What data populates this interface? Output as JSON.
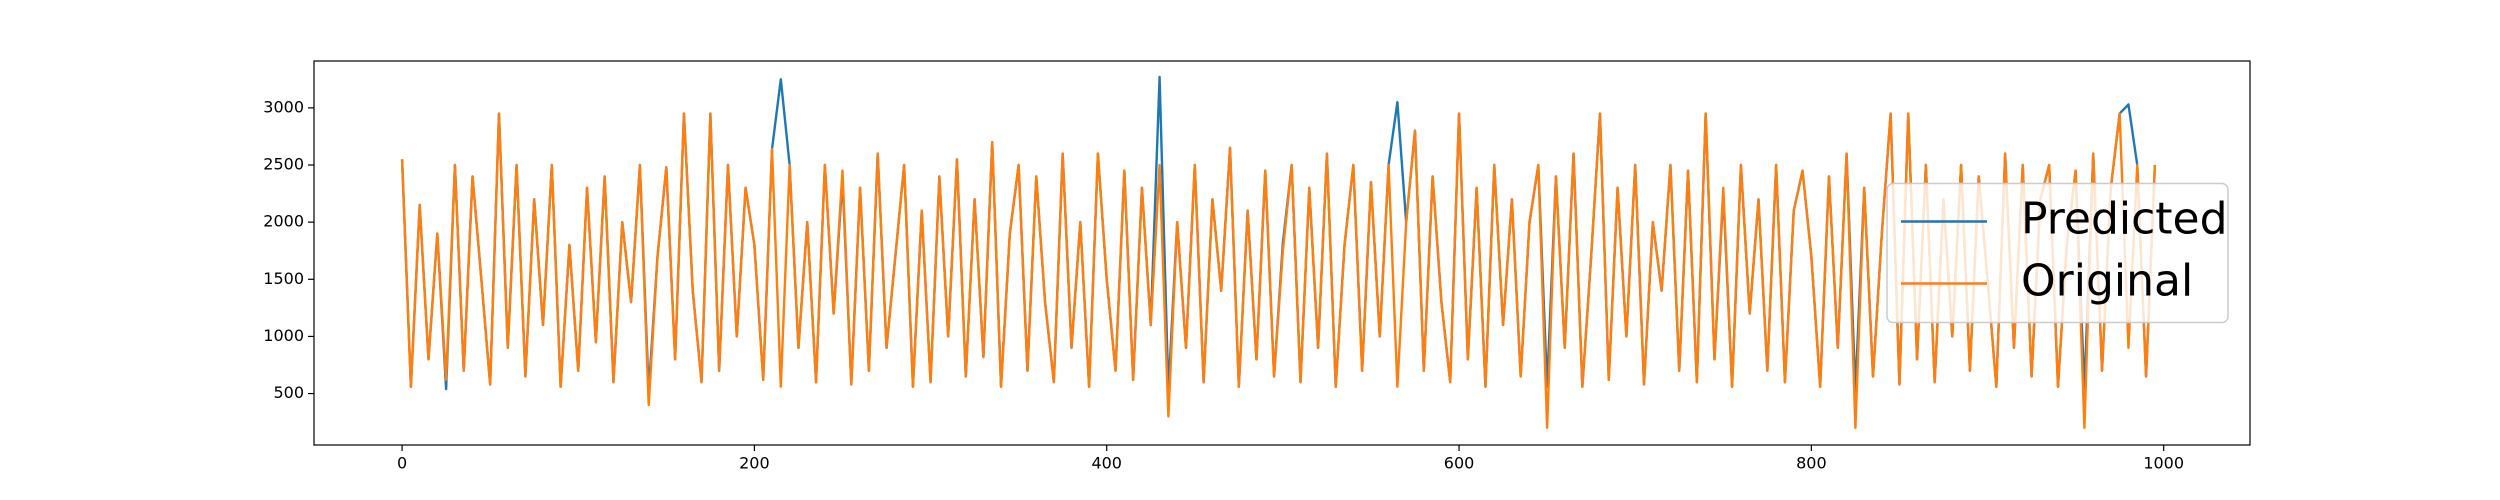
{
  "chart_data": {
    "type": "line",
    "x": [
      0,
      5,
      10,
      15,
      20,
      25,
      30,
      35,
      40,
      45,
      50,
      55,
      60,
      65,
      70,
      75,
      80,
      85,
      90,
      95,
      100,
      105,
      110,
      115,
      120,
      125,
      130,
      135,
      140,
      145,
      150,
      155,
      160,
      165,
      170,
      175,
      180,
      185,
      190,
      195,
      200,
      205,
      210,
      215,
      220,
      225,
      230,
      235,
      240,
      245,
      250,
      255,
      260,
      265,
      270,
      275,
      280,
      285,
      290,
      295,
      300,
      305,
      310,
      315,
      320,
      325,
      330,
      335,
      340,
      345,
      350,
      355,
      360,
      365,
      370,
      375,
      380,
      385,
      390,
      395,
      400,
      405,
      410,
      415,
      420,
      425,
      430,
      435,
      440,
      445,
      450,
      455,
      460,
      465,
      470,
      475,
      480,
      485,
      490,
      495,
      500,
      505,
      510,
      515,
      520,
      525,
      530,
      535,
      540,
      545,
      550,
      555,
      560,
      565,
      570,
      575,
      580,
      585,
      590,
      595,
      600,
      605,
      610,
      615,
      620,
      625,
      630,
      635,
      640,
      645,
      650,
      655,
      660,
      665,
      670,
      675,
      680,
      685,
      690,
      695,
      700,
      705,
      710,
      715,
      720,
      725,
      730,
      735,
      740,
      745,
      750,
      755,
      760,
      765,
      770,
      775,
      780,
      785,
      790,
      795,
      800,
      805,
      810,
      815,
      820,
      825,
      830,
      835,
      840,
      845,
      850,
      855,
      860,
      865,
      870,
      875,
      880,
      885,
      890,
      895,
      900,
      905,
      910,
      915,
      920,
      925,
      930,
      935,
      940,
      945,
      950,
      955,
      960,
      965,
      970,
      975,
      980,
      985,
      990,
      995
    ],
    "series": [
      {
        "name": "Predicted",
        "color": "#1f77b4",
        "values": [
          2550,
          560,
          2150,
          800,
          1900,
          540,
          2500,
          700,
          2400,
          1500,
          580,
          2950,
          900,
          2500,
          650,
          2200,
          1100,
          2500,
          560,
          1800,
          700,
          2300,
          950,
          2400,
          600,
          2000,
          1300,
          2500,
          520,
          1700,
          2480,
          800,
          2950,
          1400,
          600,
          2950,
          700,
          2500,
          1000,
          2300,
          1800,
          620,
          2640,
          3250,
          2500,
          900,
          2000,
          600,
          2500,
          1200,
          2380,
          580,
          2300,
          700,
          2600,
          900,
          1700,
          2500,
          560,
          2100,
          600,
          2400,
          1000,
          2550,
          650,
          2200,
          820,
          2700,
          560,
          1900,
          2500,
          700,
          2400,
          1300,
          600,
          2600,
          900,
          2000,
          560,
          2600,
          1500,
          700,
          2450,
          620,
          2300,
          1100,
          3270,
          520,
          2000,
          900,
          2500,
          600,
          2200,
          1400,
          2650,
          560,
          2100,
          800,
          2450,
          650,
          1820,
          2500,
          600,
          2300,
          900,
          2600,
          560,
          1800,
          2500,
          700,
          2350,
          1000,
          2500,
          3050,
          2000,
          2800,
          700,
          2400,
          1300,
          600,
          2950,
          800,
          2300,
          560,
          2500,
          1100,
          2200,
          650,
          2000,
          2500,
          560,
          2400,
          900,
          2600,
          560,
          1700,
          2950,
          620,
          2300,
          1000,
          2500,
          580,
          2000,
          1400,
          2500,
          700,
          2450,
          600,
          2950,
          800,
          2250,
          560,
          2500,
          1200,
          2200,
          700,
          2500,
          600,
          2100,
          2450,
          1700,
          560,
          2400,
          900,
          2600,
          520,
          2300,
          650,
          1900,
          2950,
          580,
          2950,
          800,
          2500,
          600,
          2200,
          1000,
          2500,
          700,
          2400,
          1500,
          560,
          2600,
          900,
          2500,
          650,
          2200,
          2500,
          560,
          1800,
          2450,
          540,
          2600,
          700,
          2300,
          2950,
          3030,
          2500,
          650,
          2500
        ]
      },
      {
        "name": "Original",
        "color": "#ff7f0e",
        "values": [
          2550,
          560,
          2150,
          800,
          1900,
          620,
          2500,
          700,
          2400,
          1500,
          580,
          2950,
          900,
          2500,
          650,
          2200,
          1100,
          2500,
          560,
          1800,
          700,
          2300,
          950,
          2400,
          600,
          2000,
          1300,
          2500,
          400,
          1700,
          2480,
          800,
          2950,
          1400,
          600,
          2950,
          700,
          2500,
          1000,
          2300,
          1800,
          620,
          2640,
          560,
          2500,
          900,
          2000,
          600,
          2500,
          1200,
          2450,
          580,
          2300,
          700,
          2600,
          900,
          1700,
          2500,
          560,
          2100,
          600,
          2400,
          1000,
          2550,
          650,
          2200,
          820,
          2700,
          560,
          1900,
          2500,
          700,
          2400,
          1300,
          600,
          2600,
          900,
          2000,
          560,
          2600,
          1500,
          700,
          2450,
          620,
          2300,
          1100,
          2500,
          300,
          2000,
          900,
          2500,
          600,
          2200,
          1400,
          2650,
          560,
          2100,
          800,
          2450,
          650,
          1750,
          2500,
          600,
          2300,
          900,
          2600,
          560,
          1800,
          2500,
          700,
          2350,
          1000,
          2500,
          560,
          2000,
          2800,
          700,
          2400,
          1300,
          600,
          2950,
          800,
          2300,
          560,
          2500,
          1100,
          2200,
          650,
          2000,
          2500,
          200,
          2400,
          900,
          2600,
          560,
          1700,
          2950,
          620,
          2300,
          1000,
          2500,
          580,
          2000,
          1400,
          2500,
          700,
          2450,
          600,
          2950,
          800,
          2300,
          560,
          2500,
          1200,
          2200,
          700,
          2500,
          600,
          2100,
          2450,
          1700,
          560,
          2400,
          900,
          2600,
          200,
          2300,
          650,
          1900,
          2950,
          580,
          2950,
          800,
          2500,
          600,
          2200,
          1000,
          2500,
          700,
          2400,
          1500,
          560,
          2600,
          900,
          2500,
          650,
          2200,
          2500,
          560,
          1800,
          2450,
          200,
          2600,
          700,
          2300,
          2950,
          900,
          2500,
          650,
          2500
        ]
      }
    ],
    "xlim": [
      -50,
      1049
    ],
    "ylim": [
      50,
      3410
    ],
    "xticks": [
      0,
      200,
      400,
      600,
      800,
      1000
    ],
    "yticks": [
      500,
      1000,
      1500,
      2000,
      2500,
      3000
    ],
    "legend": "center right"
  }
}
